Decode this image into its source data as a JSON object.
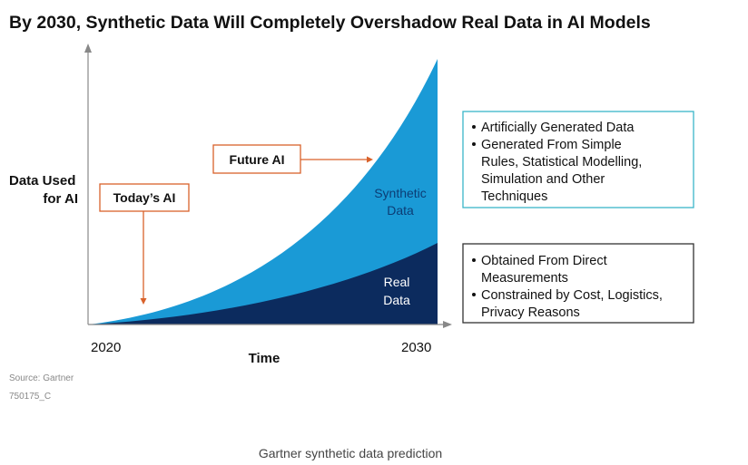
{
  "header": {
    "title": "By 2030,  Synthetic Data Will Completely Overshadow Real Data in AI Models"
  },
  "y_axis_label": [
    "Data Used",
    "for AI"
  ],
  "x_axis": {
    "start": "2020",
    "end": "2030",
    "label": "Time"
  },
  "callouts": {
    "today": "Today’s AI",
    "future": "Future AI"
  },
  "areas": {
    "synthetic": [
      "Synthetic",
      "Data"
    ],
    "real": [
      "Real",
      "Data"
    ]
  },
  "synthetic_box": [
    [
      "Artificially Generated Data"
    ],
    [
      "Generated From Simple",
      "Rules, Statistical Modelling,",
      "Simulation and Other",
      "Techniques"
    ]
  ],
  "real_box": [
    [
      "Obtained From Direct",
      "Measurements"
    ],
    [
      "Constrained by Cost, Logistics,",
      "Privacy Reasons"
    ]
  ],
  "source": [
    "Source: Gartner",
    "750175_C"
  ],
  "caption": "Gartner synthetic data prediction"
}
